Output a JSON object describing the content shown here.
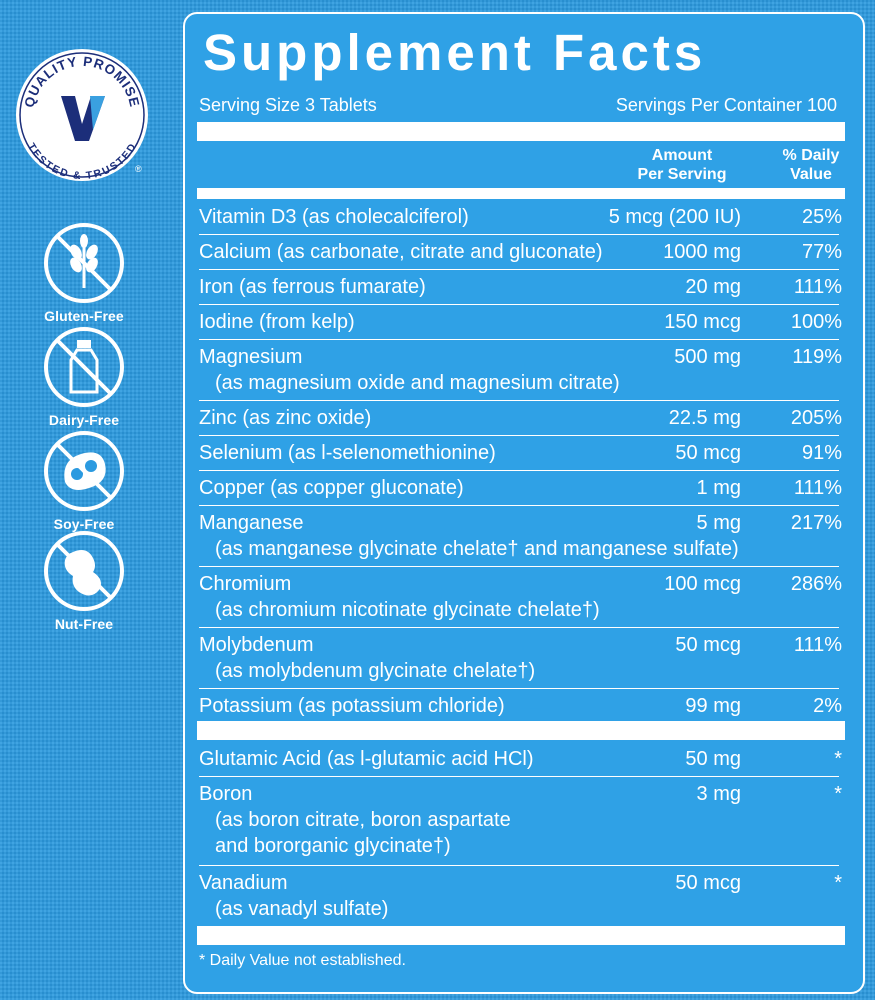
{
  "sidebar": {
    "seal": {
      "top_text": "QUALITY PROMISE",
      "bottom_text": "TESTED & TRUSTED",
      "mark": "®"
    },
    "badges": [
      {
        "label": "Gluten-Free",
        "icon": "wheat-icon"
      },
      {
        "label": "Dairy-Free",
        "icon": "milk-bottle-icon"
      },
      {
        "label": "Soy-Free",
        "icon": "soybean-icon"
      },
      {
        "label": "Nut-Free",
        "icon": "peanut-icon"
      }
    ]
  },
  "panel": {
    "title": "Supplement Facts",
    "serving_size": "Serving Size 3 Tablets",
    "servings_per_container": "Servings Per Container 100",
    "header": {
      "amount_line1": "Amount",
      "amount_line2": "Per Serving",
      "dv_line1": "% Daily",
      "dv_line2": "Value"
    },
    "rows": [
      {
        "name": "Vitamin D3 (as cholecalciferol)",
        "amount": "5 mcg (200 IU)",
        "dv": "25%"
      },
      {
        "name": "Calcium (as carbonate, citrate and gluconate)",
        "amount": "1000 mg",
        "dv": "77%"
      },
      {
        "name": "Iron (as ferrous fumarate)",
        "amount": "20 mg",
        "dv": "111%"
      },
      {
        "name": "Iodine (from kelp)",
        "amount": "150 mcg",
        "dv": "100%"
      },
      {
        "name": "Magnesium",
        "sub1": "(as magnesium oxide and magnesium citrate)",
        "amount": "500 mg",
        "dv": "119%"
      },
      {
        "name": "Zinc (as zinc oxide)",
        "amount": "22.5 mg",
        "dv": "205%"
      },
      {
        "name": "Selenium (as l-selenomethionine)",
        "amount": "50 mcg",
        "dv": "91%"
      },
      {
        "name": "Copper (as copper gluconate)",
        "amount": "1 mg",
        "dv": "111%"
      },
      {
        "name": "Manganese",
        "sub1": "(as manganese glycinate chelate† and manganese sulfate)",
        "amount": "5 mg",
        "dv": "217%"
      },
      {
        "name": "Chromium",
        "sub1": "(as chromium nicotinate glycinate chelate†)",
        "amount": "100 mcg",
        "dv": "286%"
      },
      {
        "name": "Molybdenum",
        "sub1": "(as molybdenum glycinate chelate†)",
        "amount": "50 mcg",
        "dv": "111%"
      },
      {
        "name": "Potassium (as potassium chloride)",
        "amount": "99 mg",
        "dv": "2%"
      },
      {
        "name": "Glutamic Acid (as l-glutamic acid HCl)",
        "amount": "50 mg",
        "dv": "*"
      },
      {
        "name": "Boron",
        "sub1": "(as boron citrate, boron aspartate",
        "sub2": "and bororganic glycinate†)",
        "amount": "3 mg",
        "dv": "*"
      },
      {
        "name": "Vanadium",
        "sub1": "(as vanadyl sulfate)",
        "amount": "50 mcg",
        "dv": "*"
      }
    ],
    "footnote": "* Daily Value not established."
  },
  "colors": {
    "background": "#2b9ae0",
    "panel": "#2fa1e6",
    "seal_v": "#1c2e7a",
    "text": "#ffffff"
  }
}
